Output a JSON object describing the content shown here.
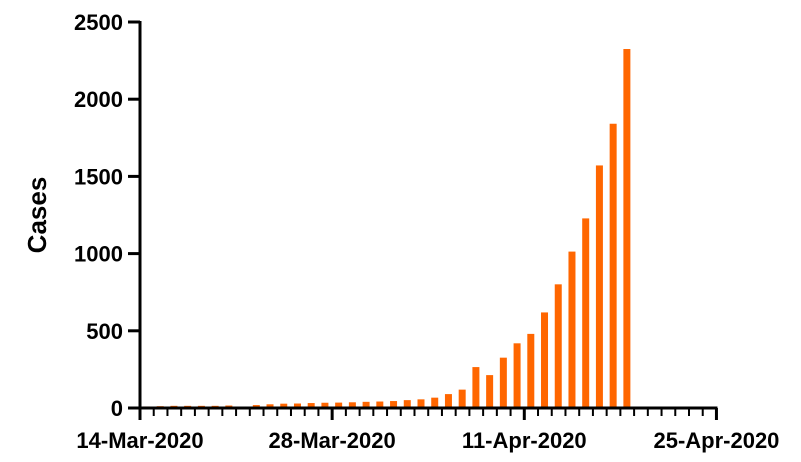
{
  "chart_data": {
    "type": "bar",
    "title": "",
    "xlabel": "",
    "ylabel": "Cases",
    "ylim": [
      0,
      2500
    ],
    "y_ticks": [
      0,
      500,
      1000,
      1500,
      2000,
      2500
    ],
    "y_tick_labels": [
      "0",
      "500",
      "1000",
      "1500",
      "2000",
      "2500"
    ],
    "x_range": [
      "2020-03-14",
      "2020-04-26"
    ],
    "x_major_ticks": [
      "2020-03-14",
      "2020-03-28",
      "2020-04-11",
      "2020-04-25"
    ],
    "x_tick_labels": [
      "14-Mar-2020",
      "28-Mar-2020",
      "11-Apr-2020",
      "25-Apr-2020"
    ],
    "grid": false,
    "legend": "none",
    "bar_color": "#FF6600",
    "series": [
      {
        "dates": [
          "2020-03-14",
          "2020-03-15",
          "2020-03-16",
          "2020-03-17",
          "2020-03-18",
          "2020-03-19",
          "2020-03-20",
          "2020-03-22",
          "2020-03-23",
          "2020-03-24",
          "2020-03-25",
          "2020-03-26",
          "2020-03-27",
          "2020-03-28",
          "2020-03-29",
          "2020-03-30",
          "2020-03-31",
          "2020-04-01",
          "2020-04-02",
          "2020-04-03",
          "2020-04-04",
          "2020-04-05",
          "2020-04-06",
          "2020-04-07",
          "2020-04-08",
          "2020-04-09",
          "2020-04-10",
          "2020-04-11",
          "2020-04-12",
          "2020-04-13",
          "2020-04-14",
          "2020-04-15",
          "2020-04-16",
          "2020-04-17",
          "2020-04-18",
          "2020-04-19",
          "2020-04-20"
        ],
        "values": [
          10,
          12,
          14,
          14,
          14,
          14,
          16,
          19,
          24,
          28,
          29,
          32,
          34,
          35,
          37,
          40,
          42,
          45,
          51,
          56,
          67,
          90,
          119,
          265,
          213,
          326,
          419,
          480,
          619,
          801,
          1013,
          1228,
          1571,
          1841,
          2325,
          0,
          0
        ]
      }
    ]
  }
}
